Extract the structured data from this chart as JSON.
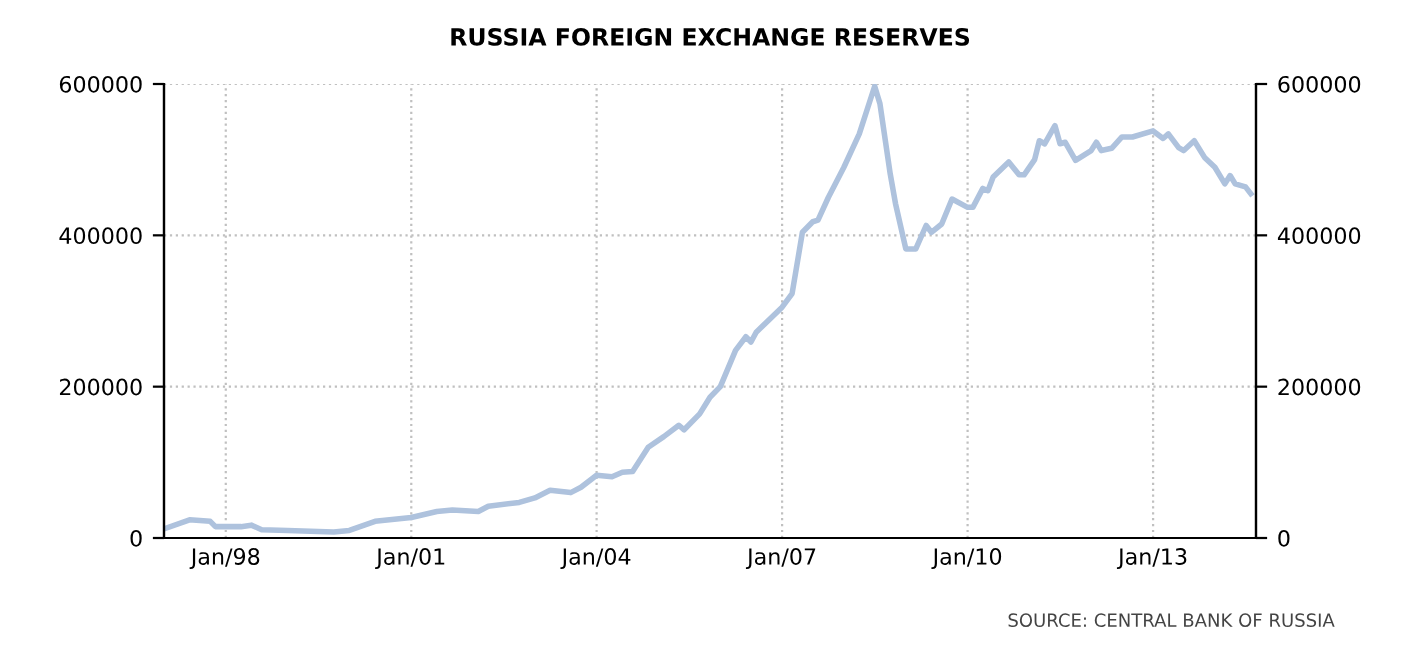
{
  "chart_data": {
    "type": "line",
    "title": "RUSSIA FOREIGN EXCHANGE RESERVES",
    "x": [
      "1997-01",
      "1997-06",
      "1997-10",
      "1997-11",
      "1998-04",
      "1998-06",
      "1998-08",
      "1999-01",
      "1999-10",
      "2000-01",
      "2000-06",
      "2001-01",
      "2001-06",
      "2001-09",
      "2002-02",
      "2002-04",
      "2002-10",
      "2003-01",
      "2003-04",
      "2003-08",
      "2003-10",
      "2004-01",
      "2004-04",
      "2004-06",
      "2004-08",
      "2004-11",
      "2005-02",
      "2005-05",
      "2005-06",
      "2005-09",
      "2005-11",
      "2006-01",
      "2006-04",
      "2006-06",
      "2006-07",
      "2006-08",
      "2007-01",
      "2007-03",
      "2007-05",
      "2007-07",
      "2007-08",
      "2007-10",
      "2008-01",
      "2008-04",
      "2008-07",
      "2008-08",
      "2008-10",
      "2008-11",
      "2009-01",
      "2009-03",
      "2009-05",
      "2009-06",
      "2009-08",
      "2009-10",
      "2010-01",
      "2010-02",
      "2010-04",
      "2010-05",
      "2010-06",
      "2010-09",
      "2010-11",
      "2010-12",
      "2011-02",
      "2011-03",
      "2011-04",
      "2011-06",
      "2011-07",
      "2011-08",
      "2011-10",
      "2012-01",
      "2012-02",
      "2012-03",
      "2012-05",
      "2012-07",
      "2012-09",
      "2013-01",
      "2013-03",
      "2013-04",
      "2013-06",
      "2013-07",
      "2013-09",
      "2013-11",
      "2014-01",
      "2014-03",
      "2014-04",
      "2014-05",
      "2014-07",
      "2014-08"
    ],
    "series": [
      {
        "color": "#aec2dd",
        "values": [
          12000,
          24000,
          22000,
          15000,
          15000,
          17000,
          11000,
          10000,
          8000,
          10000,
          22000,
          27000,
          35000,
          37000,
          35000,
          42000,
          47000,
          53000,
          63000,
          60000,
          67000,
          83000,
          81000,
          87000,
          88000,
          120000,
          134000,
          149000,
          143000,
          164000,
          186000,
          200000,
          248000,
          266000,
          259000,
          272000,
          305000,
          323000,
          404000,
          418000,
          420000,
          450000,
          490000,
          534000,
          597000,
          574000,
          481000,
          442000,
          382000,
          382000,
          413000,
          404000,
          415000,
          448000,
          437000,
          437000,
          462000,
          459000,
          477000,
          497000,
          480000,
          480000,
          500000,
          525000,
          521000,
          545000,
          521000,
          523000,
          499000,
          512000,
          523000,
          512000,
          515000,
          530000,
          530000,
          538000,
          528000,
          534000,
          516000,
          512000,
          525000,
          503000,
          490000,
          468000,
          479000,
          468000,
          464000,
          455000
        ]
      }
    ],
    "xlim": [
      "1997-01",
      "2014-09"
    ],
    "xticks": [
      {
        "value": "1998-01",
        "label": "Jan/98"
      },
      {
        "value": "2001-01",
        "label": "Jan/01"
      },
      {
        "value": "2004-01",
        "label": "Jan/04"
      },
      {
        "value": "2007-01",
        "label": "Jan/07"
      },
      {
        "value": "2010-01",
        "label": "Jan/10"
      },
      {
        "value": "2013-01",
        "label": "Jan/13"
      }
    ],
    "ylim": [
      0,
      600000
    ],
    "yticks": [
      0,
      200000,
      400000,
      600000
    ],
    "y2lim": [
      0,
      600000
    ],
    "y2ticks": [
      0,
      200000,
      400000,
      600000
    ],
    "grid": true,
    "legend": false,
    "annotations": [
      "SOURCE: CENTRAL BANK OF RUSSIA"
    ]
  }
}
